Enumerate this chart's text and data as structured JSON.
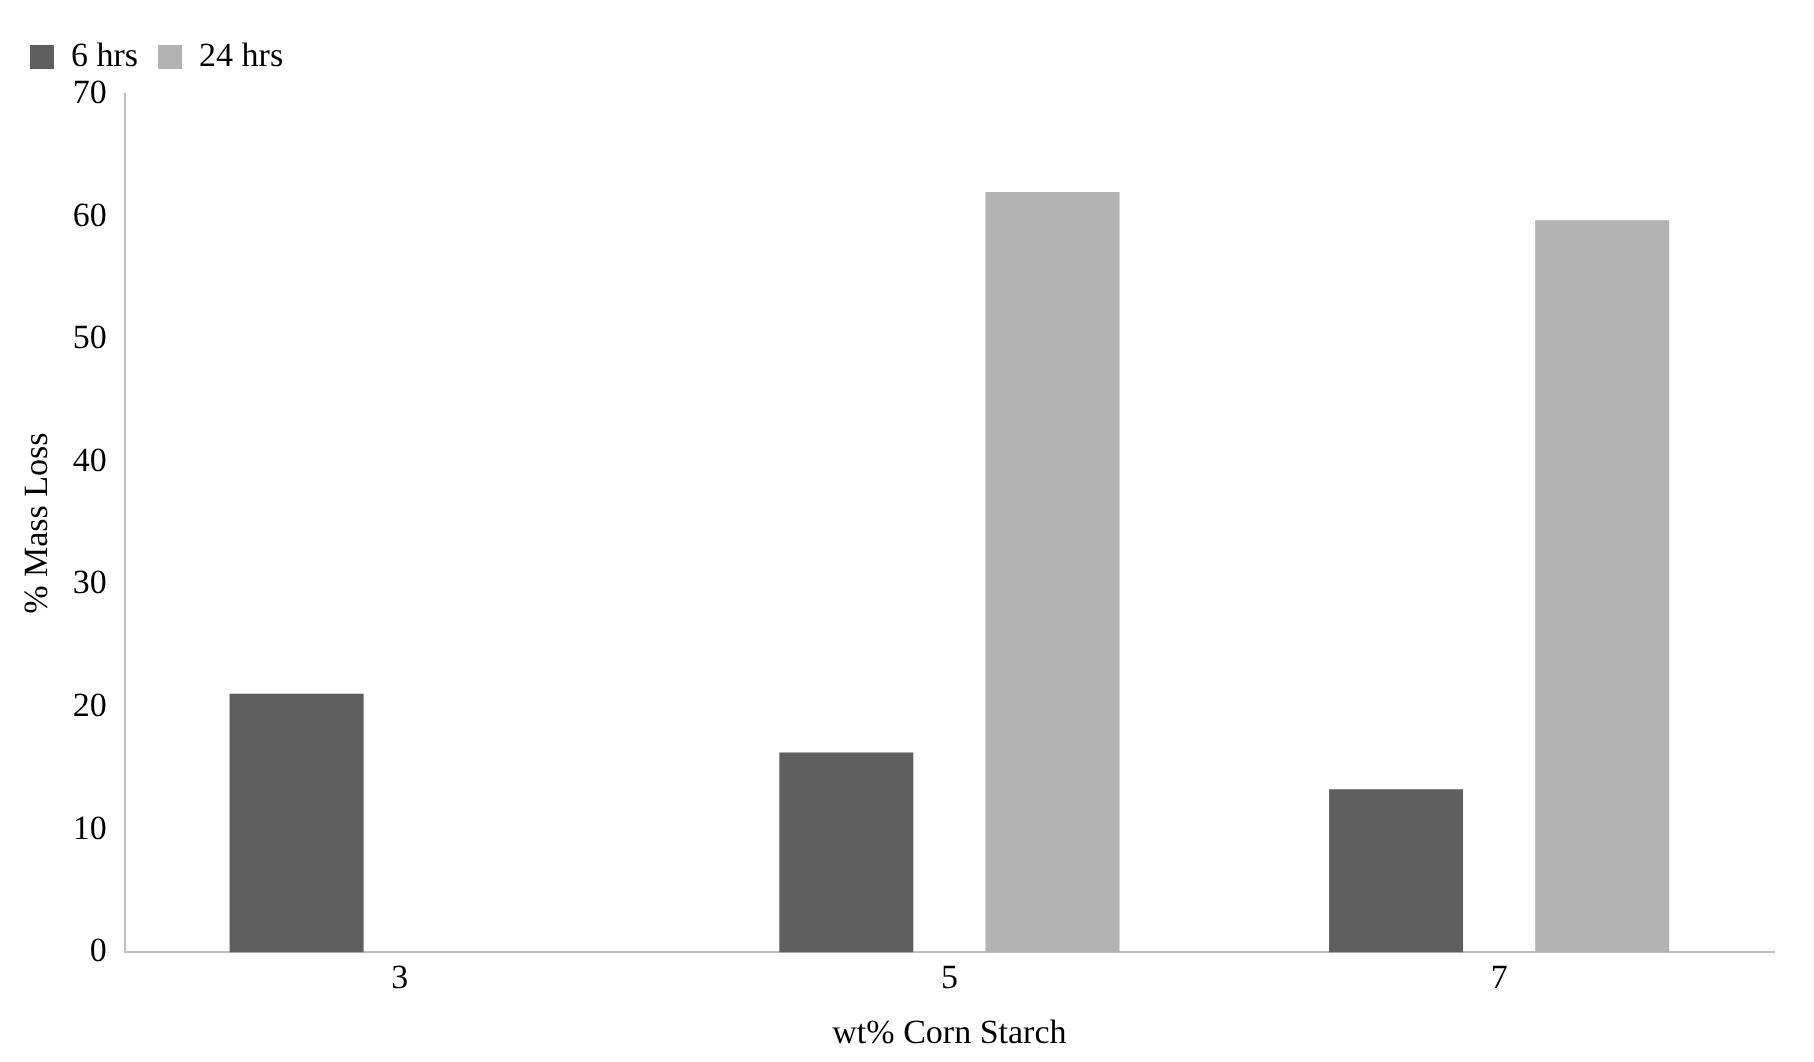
{
  "chart_data": {
    "type": "bar",
    "xlabel": "wt% Corn Starch",
    "ylabel": "% Mass Loss",
    "categories": [
      "3",
      "5",
      "7"
    ],
    "series": [
      {
        "name": "6 hrs",
        "color": "#5f5f5f",
        "values": [
          21.1,
          16.3,
          13.3
        ]
      },
      {
        "name": "24 hrs",
        "color": "#b2b2b2",
        "values": [
          null,
          62.0,
          59.7
        ]
      }
    ],
    "ylim": [
      0,
      70
    ],
    "yticks": [
      0,
      10,
      20,
      30,
      40,
      50,
      60,
      70
    ],
    "grid": false,
    "legend": "top left"
  }
}
